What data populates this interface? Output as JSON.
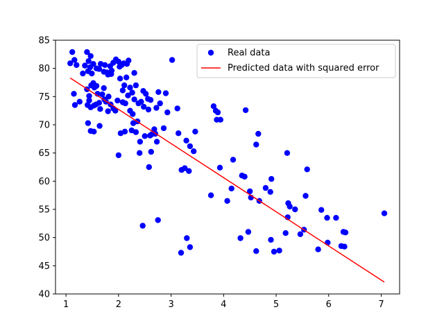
{
  "chart_data": {
    "type": "scatter",
    "title": "",
    "xlabel": "",
    "ylabel": "",
    "xlim": [
      0.8,
      7.35
    ],
    "ylim": [
      40,
      85
    ],
    "xticks": [
      1,
      2,
      3,
      4,
      5,
      6,
      7
    ],
    "yticks": [
      40,
      45,
      50,
      55,
      60,
      65,
      70,
      75,
      80,
      85
    ],
    "grid": false,
    "legend_position": "top-right",
    "series": [
      {
        "name": "Real data",
        "kind": "scatter",
        "color": "#0000ff",
        "points": [
          [
            1.12,
            82.9
          ],
          [
            1.08,
            80.9
          ],
          [
            1.2,
            80.6
          ],
          [
            1.16,
            81.5
          ],
          [
            1.15,
            75.5
          ],
          [
            1.17,
            73.5
          ],
          [
            1.26,
            74.1
          ],
          [
            1.32,
            79.1
          ],
          [
            1.36,
            80.5
          ],
          [
            1.4,
            82.9
          ],
          [
            1.43,
            81.3
          ],
          [
            1.42,
            79.5
          ],
          [
            1.46,
            80.2
          ],
          [
            1.47,
            82.2
          ],
          [
            1.49,
            79.1
          ],
          [
            1.52,
            80.8
          ],
          [
            1.4,
            76.3
          ],
          [
            1.44,
            75.1
          ],
          [
            1.48,
            77.0
          ],
          [
            1.52,
            77.4
          ],
          [
            1.54,
            76.6
          ],
          [
            1.58,
            76.9
          ],
          [
            1.41,
            73.5
          ],
          [
            1.44,
            74.3
          ],
          [
            1.47,
            73.1
          ],
          [
            1.53,
            73.4
          ],
          [
            1.57,
            73.6
          ],
          [
            1.6,
            75.5
          ],
          [
            1.63,
            73.9
          ],
          [
            1.65,
            72.8
          ],
          [
            1.42,
            70.3
          ],
          [
            1.47,
            68.9
          ],
          [
            1.53,
            68.8
          ],
          [
            1.64,
            69.8
          ],
          [
            1.58,
            80.0
          ],
          [
            1.63,
            79.9
          ],
          [
            1.66,
            80.8
          ],
          [
            1.72,
            79.4
          ],
          [
            1.74,
            80.6
          ],
          [
            1.78,
            79.3
          ],
          [
            1.8,
            78.9
          ],
          [
            1.84,
            80.4
          ],
          [
            1.86,
            79.0
          ],
          [
            1.87,
            79.6
          ],
          [
            1.9,
            81.0
          ],
          [
            1.95,
            81.6
          ],
          [
            2.0,
            81.2
          ],
          [
            1.69,
            75.4
          ],
          [
            1.73,
            74.5
          ],
          [
            1.76,
            74.1
          ],
          [
            1.81,
            75.0
          ],
          [
            1.85,
            73.6
          ],
          [
            1.9,
            72.9
          ],
          [
            1.94,
            72.5
          ],
          [
            1.98,
            74.3
          ],
          [
            1.8,
            72.4
          ],
          [
            1.72,
            76.5
          ],
          [
            2.02,
            80.3
          ],
          [
            2.06,
            80.6
          ],
          [
            2.1,
            80.9
          ],
          [
            2.16,
            80.8
          ],
          [
            2.19,
            81.4
          ],
          [
            2.03,
            78.2
          ],
          [
            2.08,
            76.1
          ],
          [
            2.11,
            77.0
          ],
          [
            2.15,
            78.4
          ],
          [
            2.22,
            76.6
          ],
          [
            2.26,
            75.7
          ],
          [
            2.3,
            79.2
          ],
          [
            2.33,
            77.0
          ],
          [
            2.08,
            74.0
          ],
          [
            2.13,
            73.8
          ],
          [
            2.18,
            75.2
          ],
          [
            2.22,
            72.5
          ],
          [
            2.27,
            71.9
          ],
          [
            2.3,
            74.5
          ],
          [
            2.38,
            73.8
          ],
          [
            2.43,
            74.1
          ],
          [
            2.47,
            76.0
          ],
          [
            2.52,
            75.5
          ],
          [
            2.56,
            74.6
          ],
          [
            2.61,
            74.4
          ],
          [
            2.48,
            73.2
          ],
          [
            2.57,
            72.7
          ],
          [
            2.72,
            73.0
          ],
          [
            2.76,
            75.8
          ],
          [
            2.79,
            73.8
          ],
          [
            2.9,
            75.6
          ],
          [
            2.93,
            72.2
          ],
          [
            2.63,
            68.3
          ],
          [
            2.68,
            69.2
          ],
          [
            2.7,
            68.4
          ],
          [
            2.73,
            67.0
          ],
          [
            2.86,
            69.4
          ],
          [
            2.04,
            68.5
          ],
          [
            2.12,
            68.8
          ],
          [
            2.25,
            69.0
          ],
          [
            2.33,
            68.7
          ],
          [
            2.28,
            70.3
          ],
          [
            2.36,
            70.6
          ],
          [
            2.5,
            68.0
          ],
          [
            2.6,
            68.1
          ],
          [
            2.0,
            64.6
          ],
          [
            2.4,
            65.0
          ],
          [
            2.41,
            67.0
          ],
          [
            2.62,
            65.2
          ],
          [
            2.58,
            62.5
          ],
          [
            2.46,
            52.1
          ],
          [
            2.75,
            53.1
          ],
          [
            3.02,
            81.5
          ],
          [
            3.12,
            72.9
          ],
          [
            3.14,
            68.5
          ],
          [
            3.2,
            62.0
          ],
          [
            3.26,
            62.3
          ],
          [
            3.29,
            67.2
          ],
          [
            3.34,
            61.8
          ],
          [
            3.36,
            66.2
          ],
          [
            3.43,
            65.3
          ],
          [
            3.46,
            68.8
          ],
          [
            3.19,
            47.3
          ],
          [
            3.3,
            49.9
          ],
          [
            3.36,
            48.3
          ],
          [
            3.76,
            57.5
          ],
          [
            3.81,
            73.3
          ],
          [
            3.85,
            72.5
          ],
          [
            3.89,
            72.2
          ],
          [
            3.87,
            70.9
          ],
          [
            3.94,
            70.9
          ],
          [
            3.93,
            62.4
          ],
          [
            4.07,
            56.5
          ],
          [
            4.18,
            63.8
          ],
          [
            4.15,
            58.7
          ],
          [
            4.35,
            61.0
          ],
          [
            4.4,
            60.8
          ],
          [
            4.42,
            72.6
          ],
          [
            4.5,
            58.2
          ],
          [
            4.52,
            57.1
          ],
          [
            4.47,
            51.0
          ],
          [
            4.32,
            49.9
          ],
          [
            4.62,
            66.5
          ],
          [
            4.66,
            68.4
          ],
          [
            4.68,
            56.5
          ],
          [
            4.62,
            47.6
          ],
          [
            4.8,
            58.8
          ],
          [
            4.89,
            58.1
          ],
          [
            4.91,
            60.4
          ],
          [
            4.9,
            49.6
          ],
          [
            4.96,
            47.5
          ],
          [
            5.06,
            47.7
          ],
          [
            5.21,
            65.0
          ],
          [
            5.23,
            56.1
          ],
          [
            5.26,
            55.5
          ],
          [
            5.22,
            53.6
          ],
          [
            5.18,
            50.8
          ],
          [
            5.36,
            55.0
          ],
          [
            5.46,
            50.6
          ],
          [
            5.53,
            51.4
          ],
          [
            5.56,
            57.4
          ],
          [
            5.59,
            62.1
          ],
          [
            5.8,
            47.9
          ],
          [
            5.86,
            54.9
          ],
          [
            5.97,
            53.5
          ],
          [
            5.98,
            49.1
          ],
          [
            6.14,
            53.5
          ],
          [
            6.24,
            48.5
          ],
          [
            6.3,
            48.4
          ],
          [
            6.28,
            51.0
          ],
          [
            6.32,
            50.9
          ],
          [
            7.06,
            54.3
          ]
        ]
      },
      {
        "name": "Predicted data with squared error",
        "kind": "line",
        "color": "#ff0000",
        "points": [
          [
            1.08,
            78.3
          ],
          [
            7.06,
            42.1
          ]
        ]
      }
    ]
  }
}
